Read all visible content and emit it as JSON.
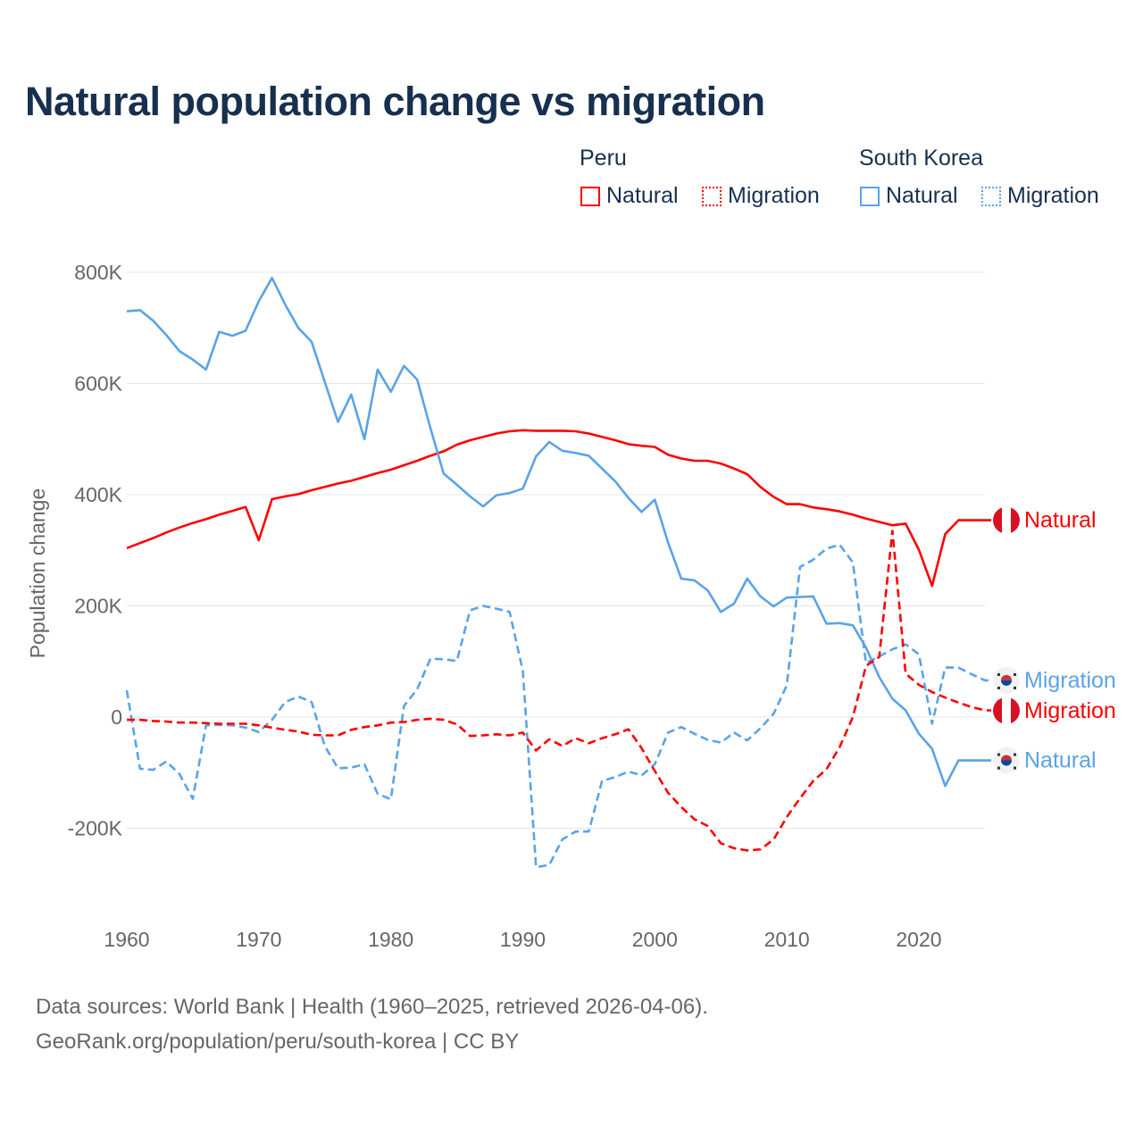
{
  "title": "Natural population change vs migration",
  "legend": {
    "groups": [
      {
        "name": "Peru",
        "items": [
          "Natural",
          "Migration"
        ],
        "color": "#ff0000"
      },
      {
        "name": "South Korea",
        "items": [
          "Natural",
          "Migration"
        ],
        "color": "#5aa3e8"
      }
    ]
  },
  "footer": {
    "line1": "Data sources: World Bank | Health (1960–2025, retrieved 2026-04-06).",
    "line2": "GeoRank.org/population/peru/south-korea | CC BY"
  },
  "chart_data": {
    "type": "line",
    "title": "Natural population change vs migration",
    "xlabel": "",
    "ylabel": "Population change",
    "xlim": [
      1960,
      2025
    ],
    "ylim": [
      -300000,
      850000
    ],
    "x_ticks": [
      1960,
      1970,
      1980,
      1990,
      2000,
      2010,
      2020
    ],
    "x_tick_labels": [
      "1960",
      "1970",
      "1980",
      "1990",
      "2000",
      "2010",
      "2020"
    ],
    "y_ticks": [
      -200000,
      0,
      200000,
      400000,
      600000,
      800000
    ],
    "y_tick_labels": [
      "-200K",
      "0",
      "200K",
      "400K",
      "600K",
      "800K"
    ],
    "grid": true,
    "legend_position": "top-right",
    "series": [
      {
        "name": "Peru Natural",
        "label": "Natural",
        "country": "Peru",
        "color": "#ff0000",
        "dash": "solid",
        "flag": "peru",
        "start": 1960,
        "values_k": [
          304,
          313,
          322,
          332,
          341,
          349,
          356,
          364,
          371,
          378,
          318,
          392,
          397,
          401,
          408,
          414,
          420,
          425,
          432,
          439,
          445,
          453,
          461,
          470,
          478,
          490,
          498,
          504,
          510,
          514,
          516,
          515,
          515,
          515,
          514,
          510,
          504,
          498,
          491,
          488,
          486,
          472,
          465,
          461,
          461,
          456,
          447,
          437,
          414,
          396,
          383,
          383,
          377,
          374,
          370,
          364,
          357,
          351,
          345,
          348,
          301,
          236,
          329,
          354
        ]
      },
      {
        "name": "South Korea Natural",
        "label": "Natural",
        "country": "South Korea",
        "color": "#5aa3e8",
        "dash": "solid",
        "flag": "korea",
        "start": 1960,
        "values_k": [
          730,
          732,
          713,
          687,
          658,
          643,
          625,
          693,
          686,
          695,
          748,
          790,
          742,
          700,
          675,
          603,
          531,
          580,
          500,
          625,
          585,
          632,
          607,
          520,
          438,
          418,
          397,
          379,
          399,
          403,
          411,
          469,
          495,
          479,
          475,
          470,
          447,
          424,
          394,
          369,
          391,
          314,
          249,
          246,
          228,
          189,
          204,
          249,
          217,
          199,
          215,
          216,
          217,
          168,
          169,
          165,
          125,
          72,
          33,
          12,
          -30,
          -57,
          -124,
          -78
        ]
      },
      {
        "name": "South Korea Migration",
        "label": "Migration",
        "country": "South Korea",
        "color": "#5aa3e8",
        "dash": "dashed",
        "flag": "korea",
        "start": 1960,
        "values_k": [
          48,
          -93,
          -95,
          -80,
          -103,
          -147,
          -15,
          -14,
          -15,
          -19,
          -27,
          -5,
          27,
          37,
          27,
          -52,
          -92,
          -91,
          -85,
          -138,
          -148,
          20,
          50,
          105,
          104,
          101,
          192,
          200,
          195,
          189,
          83,
          -270,
          -266,
          -220,
          -206,
          -206,
          -115,
          -108,
          -98,
          -105,
          -85,
          -28,
          -18,
          -30,
          -41,
          -46,
          -28,
          -42,
          -20,
          6,
          57,
          270,
          283,
          303,
          310,
          278,
          97,
          109,
          122,
          131,
          113,
          -12,
          89,
          89,
          77,
          66
        ]
      },
      {
        "name": "Peru Migration",
        "label": "Migration",
        "country": "Peru",
        "color": "#ff0000",
        "dash": "dashed",
        "flag": "peru",
        "start": 1960,
        "values_k": [
          -5,
          -5,
          -7,
          -8,
          -10,
          -10,
          -11,
          -12,
          -12,
          -12,
          -15,
          -19,
          -23,
          -26,
          -32,
          -33,
          -33,
          -23,
          -18,
          -15,
          -10,
          -9,
          -5,
          -3,
          -5,
          -13,
          -34,
          -33,
          -31,
          -33,
          -28,
          -60,
          -40,
          -52,
          -38,
          -47,
          -38,
          -31,
          -22,
          -56,
          -97,
          -136,
          -162,
          -184,
          -196,
          -227,
          -236,
          -240,
          -238,
          -220,
          -180,
          -146,
          -115,
          -94,
          -54,
          0,
          92,
          108,
          335,
          78,
          58,
          45,
          35,
          26,
          18,
          12
        ]
      }
    ],
    "end_labels": [
      {
        "series": "Peru Natural",
        "text": "Natural"
      },
      {
        "series": "South Korea Migration",
        "text": "Migration"
      },
      {
        "series": "Peru Migration",
        "text": "Migration"
      },
      {
        "series": "South Korea Natural",
        "text": "Natural"
      }
    ]
  }
}
